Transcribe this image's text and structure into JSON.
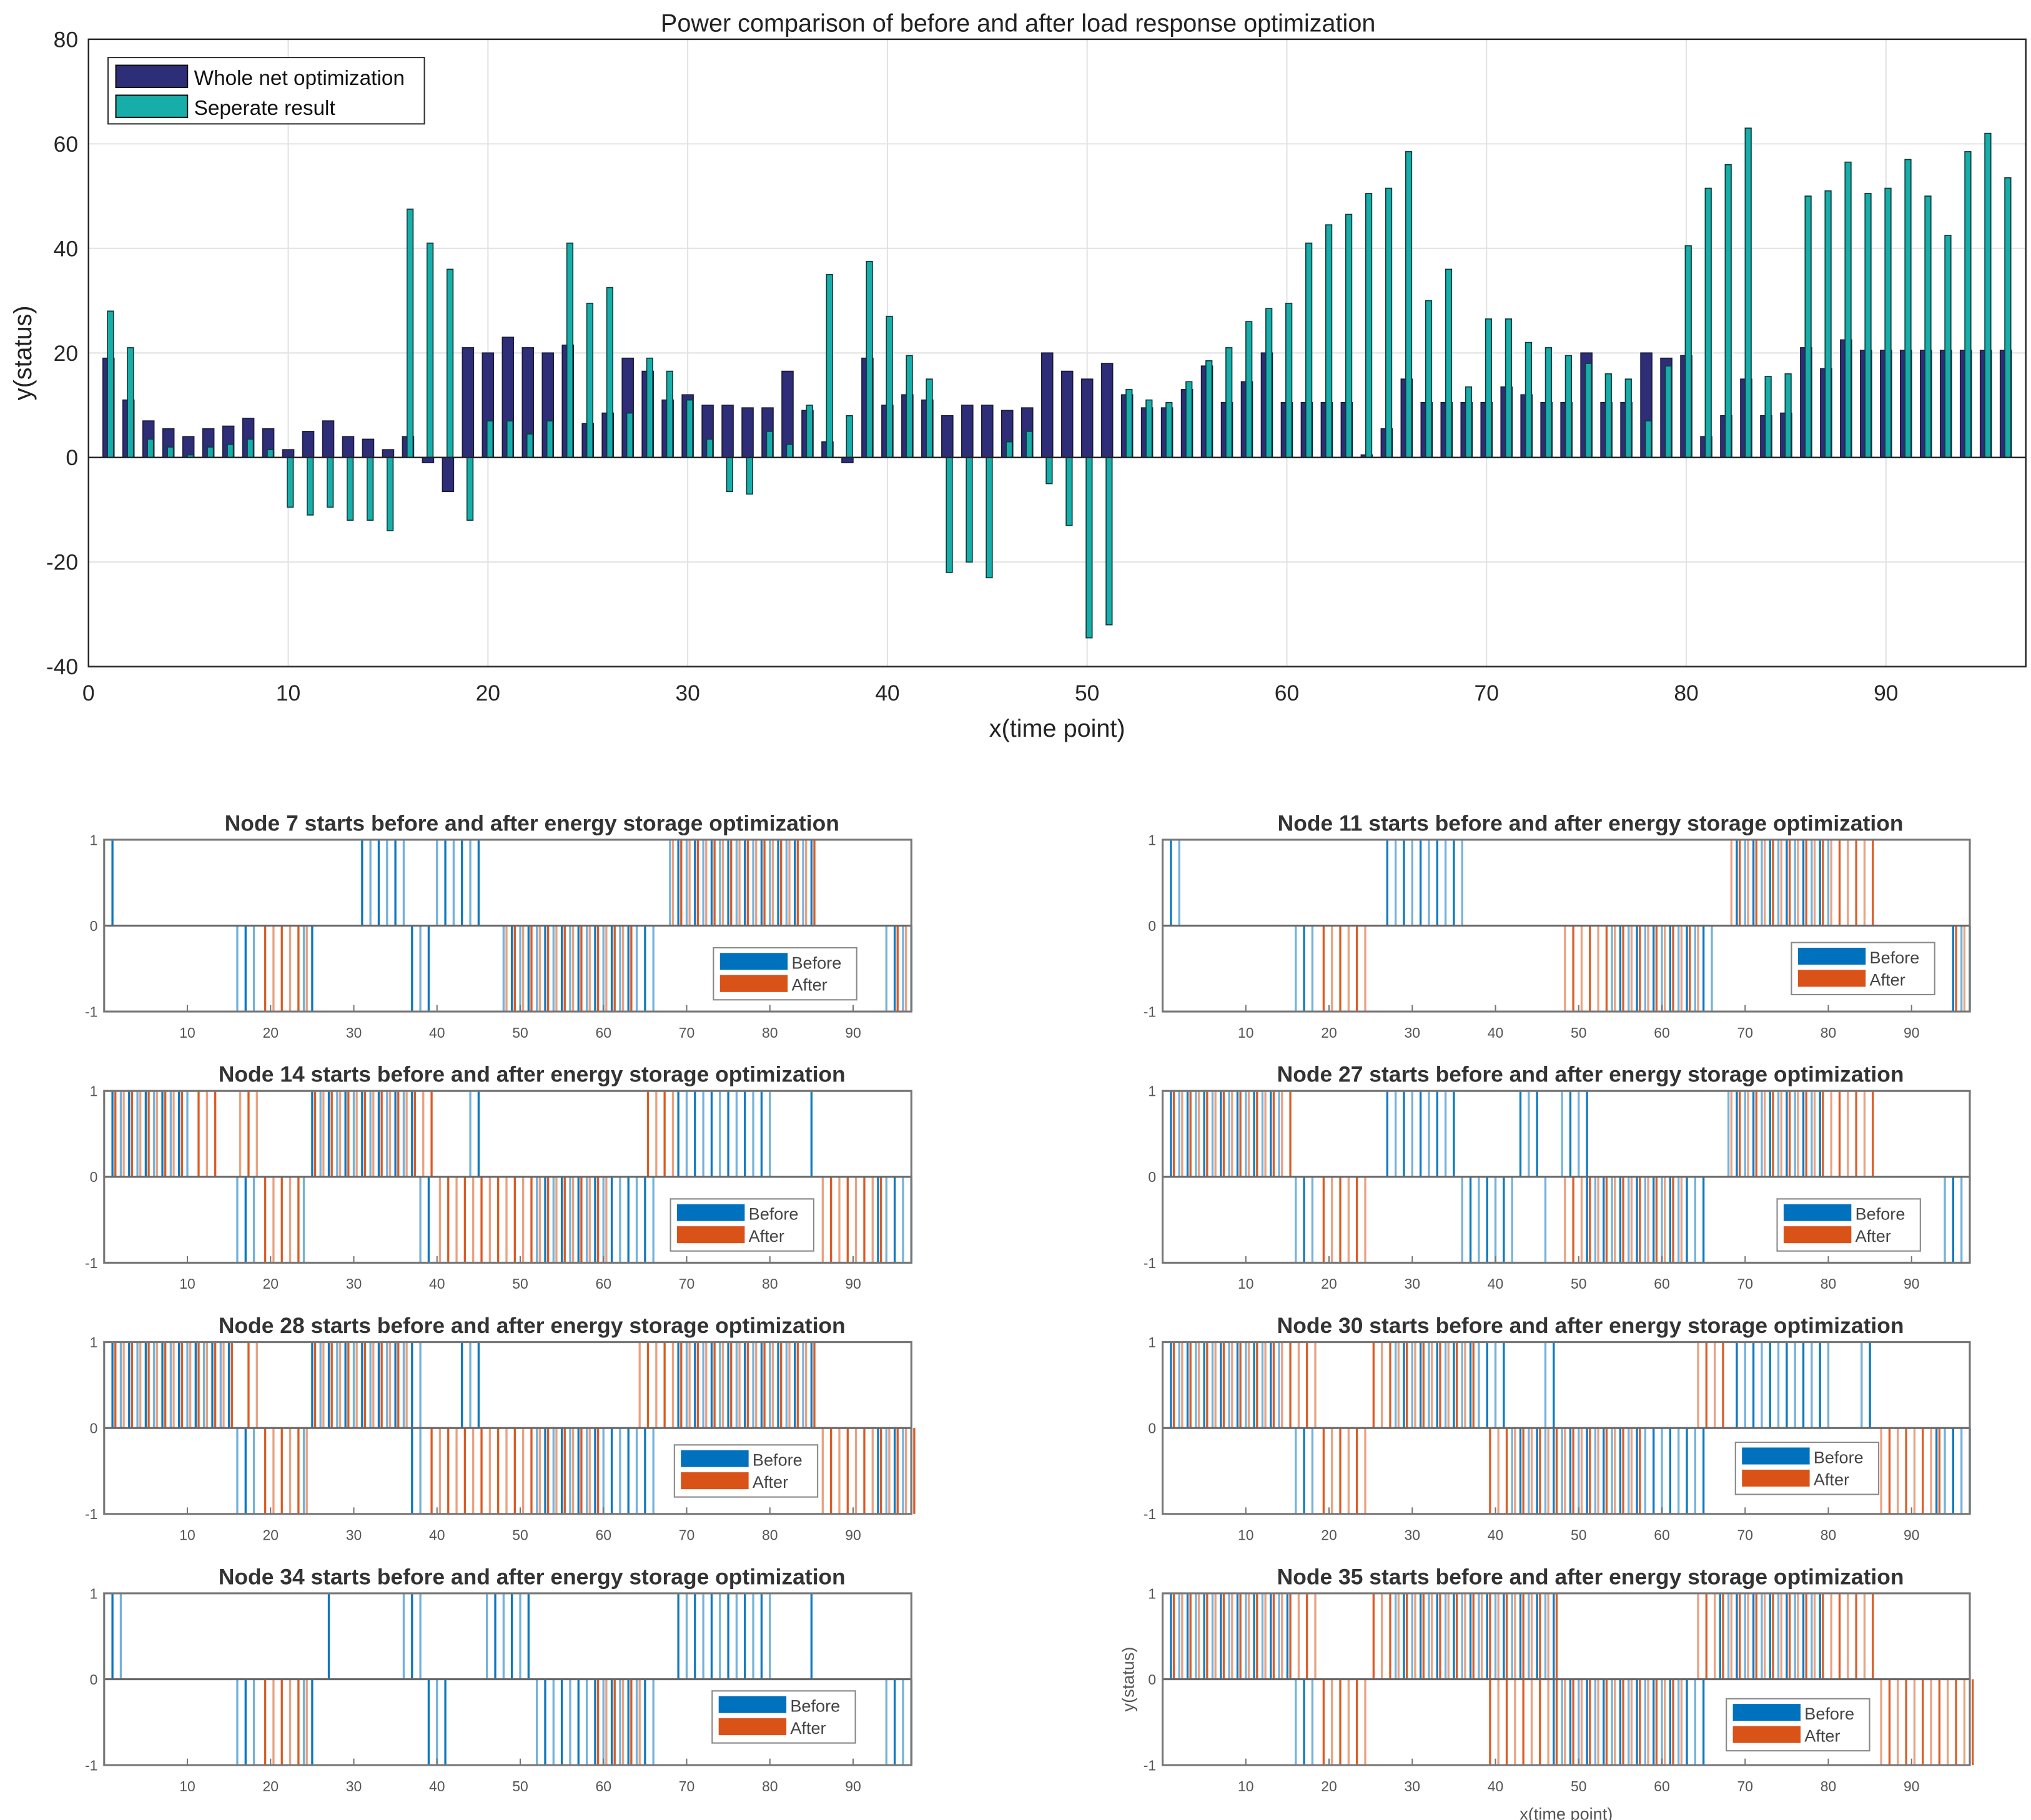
{
  "chart_data": [
    {
      "type": "bar",
      "title": "Power comparison of before and after load response optimization",
      "xlabel": "x(time point)",
      "ylabel": "y(status)",
      "xlim": [
        0,
        97
      ],
      "ylim": [
        -40,
        80
      ],
      "xticks": [
        0,
        10,
        20,
        30,
        40,
        50,
        60,
        70,
        80,
        90
      ],
      "yticks": [
        -40,
        -20,
        0,
        20,
        40,
        60,
        80
      ],
      "grid": true,
      "legend_position": "top-left",
      "x": [
        1,
        2,
        3,
        4,
        5,
        6,
        7,
        8,
        9,
        10,
        11,
        12,
        13,
        14,
        15,
        16,
        17,
        18,
        19,
        20,
        21,
        22,
        23,
        24,
        25,
        26,
        27,
        28,
        29,
        30,
        31,
        32,
        33,
        34,
        35,
        36,
        37,
        38,
        39,
        40,
        41,
        42,
        43,
        44,
        45,
        46,
        47,
        48,
        49,
        50,
        51,
        52,
        53,
        54,
        55,
        56,
        57,
        58,
        59,
        60,
        61,
        62,
        63,
        64,
        65,
        66,
        67,
        68,
        69,
        70,
        71,
        72,
        73,
        74,
        75,
        76,
        77,
        78,
        79,
        80,
        81,
        82,
        83,
        84,
        85,
        86,
        87,
        88,
        89,
        90,
        91,
        92,
        93,
        94,
        95,
        96
      ],
      "series": [
        {
          "name": "Whole net optimization",
          "color": "#2e2d78",
          "values": [
            19,
            11,
            7,
            5.5,
            4,
            5.5,
            6,
            7.5,
            5.5,
            1.5,
            5,
            7,
            4,
            3.5,
            1.5,
            4,
            -1,
            -6.5,
            21,
            20,
            23,
            21,
            20,
            21.5,
            6.5,
            8.5,
            19,
            16.5,
            11,
            12,
            10,
            10,
            9.5,
            9.5,
            16.5,
            9,
            3,
            -1,
            19,
            10,
            12,
            11,
            8,
            10,
            10,
            9,
            9.5,
            20,
            16.5,
            15,
            18,
            12,
            9.5,
            9.5,
            13,
            17.5,
            10.5,
            14.5,
            20,
            10.5,
            10.5,
            10.5,
            10.5,
            0.5,
            5.5,
            15,
            10.5,
            10.5,
            10.5,
            10.5,
            13.5,
            12,
            10.5,
            10.5,
            20,
            10.5,
            10.5,
            20,
            19,
            19.5,
            4,
            8,
            15,
            8,
            8.5,
            21,
            17,
            22.5,
            20.5,
            20.5,
            20.5,
            20.5,
            20.5,
            20.5,
            20.5,
            20.5
          ]
        },
        {
          "name": "Seperate result",
          "color": "#17aeaa",
          "values": [
            28,
            21,
            3.5,
            2,
            0.5,
            2,
            2.5,
            3.5,
            1.5,
            -9.5,
            -11,
            -9.5,
            -12,
            -12,
            -14,
            47.5,
            41,
            36,
            -12,
            7,
            7,
            4.5,
            7,
            41,
            29.5,
            32.5,
            8.5,
            19,
            16.5,
            11,
            3.5,
            -6.5,
            -7,
            5,
            2.5,
            10,
            35,
            8,
            37.5,
            27,
            19.5,
            15,
            -22,
            -20,
            -23,
            3,
            5,
            -5,
            -13,
            -34.5,
            -32,
            13,
            11,
            10.5,
            14.5,
            18.5,
            21,
            26,
            28.5,
            29.5,
            41,
            44.5,
            46.5,
            50.5,
            51.5,
            58.5,
            30,
            36,
            13.5,
            26.5,
            26.5,
            22,
            21,
            19.5,
            18,
            16,
            15,
            7,
            17.5,
            40.5,
            51.5,
            56,
            63,
            15.5,
            16,
            50,
            51,
            56.5,
            50.5,
            51.5,
            57,
            50,
            42.5,
            58.5,
            62,
            53.5
          ]
        }
      ]
    },
    {
      "type": "event",
      "title": "Node 7 starts before and after energy storage optimization",
      "xlim": [
        0,
        97
      ],
      "ylim": [
        -1,
        1
      ],
      "xticks": [
        10,
        20,
        30,
        40,
        50,
        60,
        70,
        80,
        90
      ],
      "yticks": [
        -1,
        0,
        1
      ],
      "legend": [
        "Before",
        "After"
      ],
      "before": {
        "up": [
          [
            1,
            1
          ],
          [
            31,
            36
          ],
          [
            40,
            45
          ],
          [
            68,
            85
          ]
        ],
        "down": [
          [
            16,
            18
          ],
          [
            24,
            25
          ],
          [
            37,
            39
          ],
          [
            48,
            66
          ],
          [
            94,
            97
          ]
        ]
      },
      "after": {
        "up": [
          [
            68,
            85
          ]
        ],
        "down": [
          [
            19,
            24
          ],
          [
            48,
            63
          ],
          [
            95,
            96
          ]
        ]
      }
    },
    {
      "type": "event",
      "title": "Node 11 starts before and after energy storage optimization",
      "xlim": [
        0,
        97
      ],
      "ylim": [
        -1,
        1
      ],
      "xticks": [
        10,
        20,
        30,
        40,
        50,
        60,
        70,
        80,
        90
      ],
      "yticks": [
        -1,
        0,
        1
      ],
      "legend": [
        "Before",
        "After"
      ],
      "before": {
        "up": [
          [
            1,
            2
          ],
          [
            27,
            36
          ],
          [
            69,
            80
          ]
        ],
        "down": [
          [
            16,
            18
          ],
          [
            54,
            66
          ],
          [
            95,
            97
          ]
        ]
      },
      "after": {
        "up": [
          [
            68,
            85
          ]
        ],
        "down": [
          [
            19,
            24
          ],
          [
            48,
            64
          ],
          [
            95,
            96
          ]
        ]
      }
    },
    {
      "type": "event",
      "title": "Node 14 starts before and after energy storage optimization",
      "xlim": [
        0,
        97
      ],
      "ylim": [
        -1,
        1
      ],
      "xticks": [
        10,
        20,
        30,
        40,
        50,
        60,
        70,
        80,
        90
      ],
      "yticks": [
        -1,
        0,
        1
      ],
      "legend": [
        "Before",
        "After"
      ],
      "before": {
        "up": [
          [
            1,
            10
          ],
          [
            25,
            37
          ],
          [
            44,
            45
          ],
          [
            69,
            80
          ],
          [
            85,
            85
          ]
        ],
        "down": [
          [
            16,
            18
          ],
          [
            24,
            24
          ],
          [
            38,
            39
          ],
          [
            52,
            66
          ],
          [
            93,
            97
          ]
        ]
      },
      "after": {
        "up": [
          [
            1,
            9
          ],
          [
            11,
            13
          ],
          [
            16,
            18
          ],
          [
            25,
            39
          ],
          [
            65,
            68
          ]
        ],
        "down": [
          [
            19,
            23
          ],
          [
            40,
            60
          ],
          [
            86,
            93
          ]
        ]
      }
    },
    {
      "type": "event",
      "title": "Node 27 starts before and after energy storage optimization",
      "xlim": [
        0,
        97
      ],
      "ylim": [
        -1,
        1
      ],
      "xticks": [
        10,
        20,
        30,
        40,
        50,
        60,
        70,
        80,
        90
      ],
      "yticks": [
        -1,
        0,
        1
      ],
      "legend": [
        "Before",
        "After"
      ],
      "before": {
        "up": [
          [
            1,
            14
          ],
          [
            27,
            35
          ],
          [
            43,
            45
          ],
          [
            48,
            51
          ],
          [
            68,
            79
          ]
        ],
        "down": [
          [
            16,
            18
          ],
          [
            36,
            42
          ],
          [
            46,
            46
          ],
          [
            51,
            65
          ],
          [
            94,
            96
          ]
        ]
      },
      "after": {
        "up": [
          [
            1,
            15
          ],
          [
            68,
            85
          ]
        ],
        "down": [
          [
            19,
            24
          ],
          [
            48,
            62
          ]
        ]
      }
    },
    {
      "type": "event",
      "title": "Node 28 starts before and after energy storage optimization",
      "xlim": [
        0,
        97
      ],
      "ylim": [
        -1,
        1
      ],
      "xticks": [
        10,
        20,
        30,
        40,
        50,
        60,
        70,
        80,
        90
      ],
      "yticks": [
        -1,
        0,
        1
      ],
      "legend": [
        "Before",
        "After"
      ],
      "before": {
        "up": [
          [
            1,
            15
          ],
          [
            25,
            38
          ],
          [
            43,
            45
          ],
          [
            69,
            85
          ]
        ],
        "down": [
          [
            16,
            18
          ],
          [
            24,
            24
          ],
          [
            37,
            38
          ],
          [
            52,
            66
          ],
          [
            93,
            97
          ]
        ]
      },
      "after": {
        "up": [
          [
            1,
            15
          ],
          [
            17,
            18
          ],
          [
            25,
            36
          ],
          [
            64,
            85
          ]
        ],
        "down": [
          [
            19,
            24
          ],
          [
            39,
            59
          ],
          [
            86,
            97
          ]
        ]
      }
    },
    {
      "type": "event",
      "title": "Node 30 starts before and after energy storage optimization",
      "xlim": [
        0,
        97
      ],
      "ylim": [
        -1,
        1
      ],
      "xticks": [
        10,
        20,
        30,
        40,
        50,
        60,
        70,
        80,
        90
      ],
      "yticks": [
        -1,
        0,
        1
      ],
      "legend": [
        "Before",
        "After"
      ],
      "before": {
        "up": [
          [
            1,
            14
          ],
          [
            28,
            41
          ],
          [
            46,
            47
          ],
          [
            69,
            80
          ],
          [
            84,
            85
          ]
        ],
        "down": [
          [
            16,
            18
          ],
          [
            42,
            65
          ],
          [
            93,
            97
          ]
        ]
      },
      "after": {
        "up": [
          [
            1,
            18
          ],
          [
            25,
            37
          ],
          [
            64,
            67
          ]
        ],
        "down": [
          [
            19,
            24
          ],
          [
            39,
            57
          ],
          [
            86,
            93
          ]
        ]
      }
    },
    {
      "type": "event",
      "title": "Node 34 starts before and after energy storage optimization",
      "xlim": [
        0,
        97
      ],
      "ylim": [
        -1,
        1
      ],
      "xticks": [
        10,
        20,
        30,
        40,
        50,
        60,
        70,
        80,
        90
      ],
      "yticks": [
        -1,
        0,
        1
      ],
      "legend": [
        "Before",
        "After"
      ],
      "before": {
        "up": [
          [
            1,
            2
          ],
          [
            27,
            27
          ],
          [
            36,
            38
          ],
          [
            46,
            51
          ],
          [
            69,
            80
          ],
          [
            85,
            85
          ]
        ],
        "down": [
          [
            16,
            18
          ],
          [
            24,
            25
          ],
          [
            39,
            41
          ],
          [
            52,
            66
          ],
          [
            94,
            97
          ]
        ]
      },
      "after": {
        "up": [],
        "down": [
          [
            19,
            24
          ],
          [
            59,
            64
          ]
        ]
      }
    },
    {
      "type": "event",
      "title": "Node 35 starts before and after energy storage optimization",
      "xlabel": "x(time point)",
      "ylabel": "y(status)",
      "xlim": [
        0,
        97
      ],
      "ylim": [
        -1,
        1
      ],
      "xticks": [
        10,
        20,
        30,
        40,
        50,
        60,
        70,
        80,
        90
      ],
      "yticks": [
        -1,
        0,
        1
      ],
      "legend": [
        "Before",
        "After"
      ],
      "before": {
        "up": [
          [
            1,
            15
          ],
          [
            28,
            47
          ],
          [
            67,
            79
          ]
        ],
        "down": [
          [
            16,
            18
          ],
          [
            47,
            65
          ]
        ]
      },
      "after": {
        "up": [
          [
            1,
            18
          ],
          [
            25,
            47
          ],
          [
            64,
            85
          ]
        ],
        "down": [
          [
            19,
            24
          ],
          [
            39,
            62
          ],
          [
            86,
            97
          ]
        ]
      }
    }
  ],
  "colors": {
    "before": "#0072bd",
    "after": "#d95319",
    "grid": "#e3e3e3"
  }
}
